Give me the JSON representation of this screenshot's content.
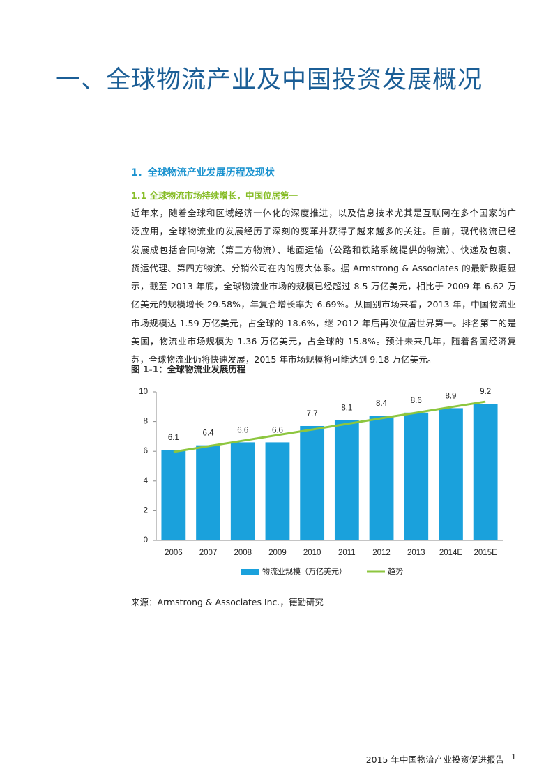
{
  "heading": "一、全球物流产业及中国投资发展概况",
  "section_title": "1．全球物流产业发展历程及现状",
  "subsection_title": "1.1 全球物流市场持续增长，中国位居第一",
  "paragraph_lines": [
    "近年来，随着全球和区域经济一体化的深度推进，以及信息技术尤其是互联网在多个国家的广",
    "泛应用，全球物流业的发展经历了深刻的变革并获得了越来越多的关注。目前，现代物流已经",
    "发展成包括合同物流（第三方物流）、地面运输（公路和铁路系统提供的物流）、快递及包裹、",
    "货运代理、第四方物流、分销公司在内的庞大体系。据 Armstrong & Associates 的最新数据显",
    "示，截至 2013 年底，全球物流业市场的规模已经超过 8.5 万亿美元，相比于 2009 年 6.62 万",
    "亿美元的规模增长 29.58%，年复合增长率为 6.69%。从国别市场来看，2013 年，中国物流业",
    "市场规模达 1.59 万亿美元，占全球的 18.6%，继 2012 年后再次位居世界第一。排名第二的是",
    "美国，物流业市场规模为 1.36 万亿美元，占全球的 15.8%。预计未来几年，随着各国经济复",
    "苏，全球物流业仍将快速发展，2015 年市场规模将可能达到 9.18 万亿美元。"
  ],
  "figure_caption": "图 1-1：全球物流业发展历程",
  "chart_data": {
    "type": "bar",
    "categories": [
      "2006",
      "2007",
      "2008",
      "2009",
      "2010",
      "2011",
      "2012",
      "2013",
      "2014E",
      "2015E"
    ],
    "series": [
      {
        "name": "物流业规模（万亿美元）",
        "color": "#1aa1dc",
        "values": [
          6.1,
          6.4,
          6.6,
          6.6,
          7.7,
          8.1,
          8.4,
          8.6,
          8.9,
          9.2
        ]
      },
      {
        "name": "趋势",
        "type": "line",
        "color": "#8dc63f",
        "values": [
          5.96,
          6.34,
          6.71,
          7.09,
          7.46,
          7.84,
          8.22,
          8.59,
          8.97,
          9.34
        ]
      }
    ],
    "ylim": [
      0,
      10
    ],
    "yticks": [
      0,
      2,
      4,
      6,
      8,
      10
    ],
    "grid": false,
    "legend": "bottom"
  },
  "source": "来源：Armstrong & Associates Inc.，德勤研究",
  "footer": {
    "text": "2015 年中国物流产业投资促进报告",
    "page": 1
  }
}
